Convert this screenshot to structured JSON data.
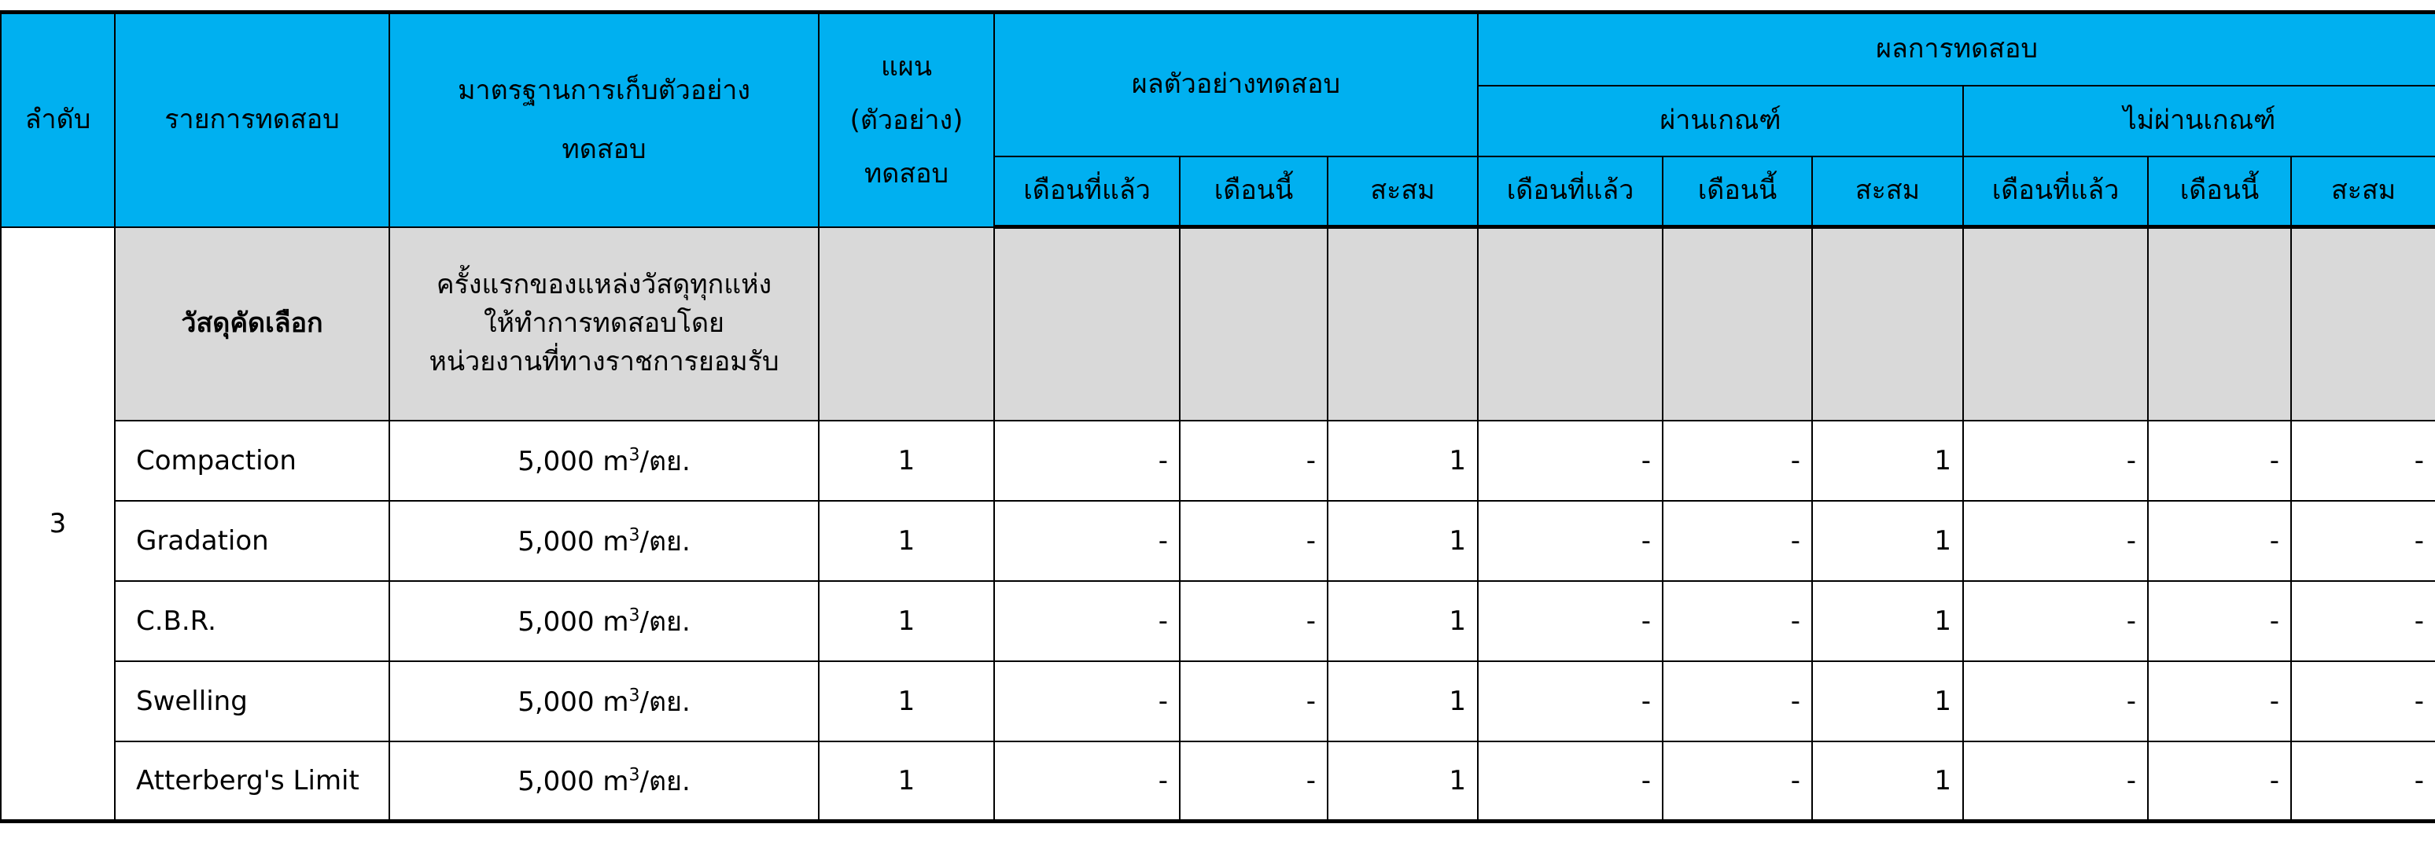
{
  "header": {
    "seq": "ลำดับ",
    "item": "รายการทดสอบ",
    "standard": "มาตรฐานการเก็บตัวอย่างทดสอบ",
    "plan": [
      "แผน",
      "(ตัวอย่าง)",
      "ทดสอบ"
    ],
    "sample_results": "ผลตัวอย่างทดสอบ",
    "test_results": "ผลการทดสอบ",
    "pass": "ผ่านเกณฑ์",
    "fail": "ไม่ผ่านเกณฑ์",
    "sub": {
      "prev": "เดือนที่แล้ว",
      "this": "เดือนนี้",
      "cum": "สะสม"
    }
  },
  "colors": {
    "header_bg": "#00b0f0",
    "group_bg": "#d9d9d9"
  },
  "group": {
    "seq": "3",
    "name": "วัสดุคัดเลือก",
    "standard": [
      "ครั้งแรกของแหล่งวัสดุทุกแห่ง",
      "ให้ทำการทดสอบโดย",
      "หน่วยงานที่ทางราชการยอมรับ"
    ]
  },
  "rows": [
    {
      "name": "Compaction",
      "std_value": "5,000 m",
      "std_exp": "3",
      "std_unit": "/ตย.",
      "plan": "1",
      "sample": [
        "-",
        "-",
        "1"
      ],
      "pass": [
        "-",
        "-",
        "1"
      ],
      "fail": [
        "-",
        "-",
        "-"
      ]
    },
    {
      "name": "Gradation",
      "std_value": "5,000 m",
      "std_exp": "3",
      "std_unit": "/ตย.",
      "plan": "1",
      "sample": [
        "-",
        "-",
        "1"
      ],
      "pass": [
        "-",
        "-",
        "1"
      ],
      "fail": [
        "-",
        "-",
        "-"
      ]
    },
    {
      "name": "C.B.R.",
      "std_value": "5,000 m",
      "std_exp": "3",
      "std_unit": "/ตย.",
      "plan": "1",
      "sample": [
        "-",
        "-",
        "1"
      ],
      "pass": [
        "-",
        "-",
        "1"
      ],
      "fail": [
        "-",
        "-",
        "-"
      ]
    },
    {
      "name": "Swelling",
      "std_value": "5,000 m",
      "std_exp": "3",
      "std_unit": "/ตย.",
      "plan": "1",
      "sample": [
        "-",
        "-",
        "1"
      ],
      "pass": [
        "-",
        "-",
        "1"
      ],
      "fail": [
        "-",
        "-",
        "-"
      ]
    },
    {
      "name": "Atterberg's Limit",
      "std_value": "5,000 m",
      "std_exp": "3",
      "std_unit": "/ตย.",
      "plan": "1",
      "sample": [
        "-",
        "-",
        "1"
      ],
      "pass": [
        "-",
        "-",
        "1"
      ],
      "fail": [
        "-",
        "-",
        "-"
      ]
    }
  ]
}
